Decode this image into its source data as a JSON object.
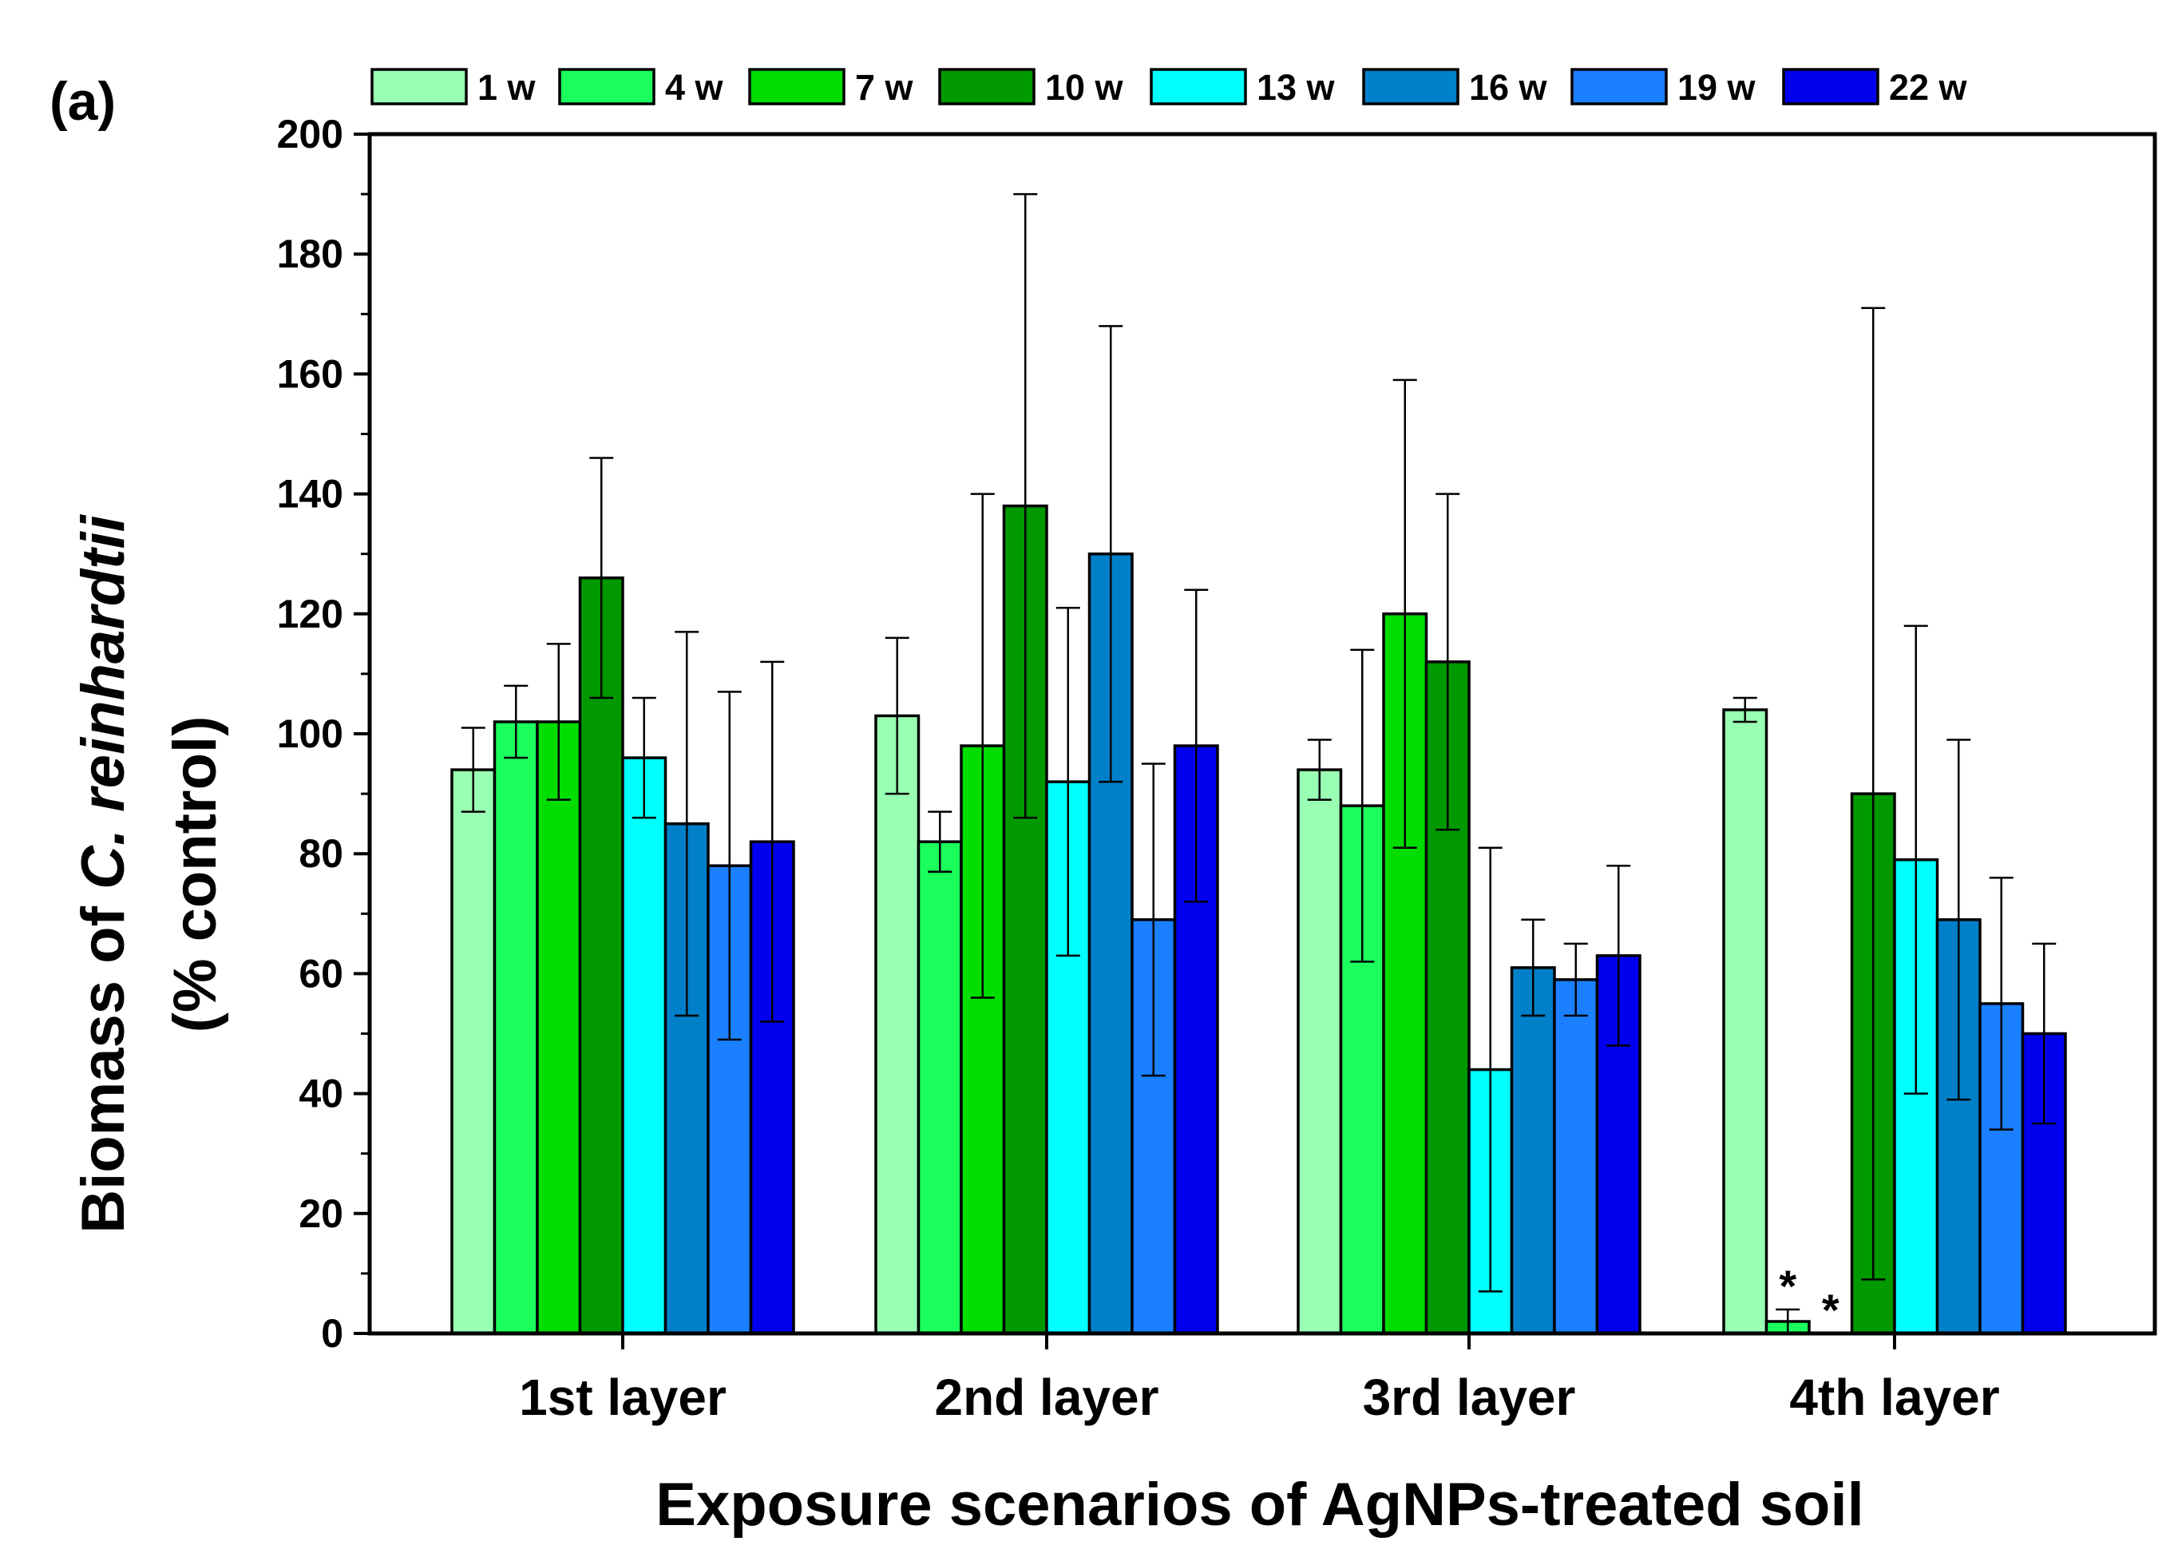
{
  "panel_label": "(a)",
  "chart_data": {
    "type": "bar",
    "title": "",
    "xlabel": "Exposure scenarios of AgNPs-treated soil",
    "ylabel_prefix": "Biomass of ",
    "ylabel_species": "C. reinhardtii",
    "ylabel_line2": "(% control)",
    "ylim": [
      0,
      200
    ],
    "ytick_step": 20,
    "yticks": [
      "0",
      "20",
      "40",
      "60",
      "80",
      "100",
      "120",
      "140",
      "160",
      "180",
      "200"
    ],
    "categories": [
      "1st layer",
      "2nd layer",
      "3rd layer",
      "4th layer"
    ],
    "legend_position": "top",
    "series": [
      {
        "name": "1 w",
        "color": "#99FFB3",
        "values": [
          94,
          103,
          94,
          104
        ],
        "err_low": [
          87,
          90,
          89,
          102
        ],
        "err_high": [
          101,
          116,
          99,
          106
        ]
      },
      {
        "name": "4 w",
        "color": "#1AFF5C",
        "values": [
          102,
          82,
          88,
          2
        ],
        "err_low": [
          96,
          77,
          62,
          0
        ],
        "err_high": [
          108,
          87,
          114,
          4
        ]
      },
      {
        "name": "7 w",
        "color": "#00DD00",
        "values": [
          102,
          98,
          120,
          0
        ],
        "err_low": [
          89,
          56,
          81,
          0
        ],
        "err_high": [
          115,
          140,
          159,
          0
        ]
      },
      {
        "name": "10 w",
        "color": "#009900",
        "values": [
          126,
          138,
          112,
          90
        ],
        "err_low": [
          106,
          86,
          84,
          9
        ],
        "err_high": [
          146,
          190,
          140,
          171
        ]
      },
      {
        "name": "13 w",
        "color": "#00FFFF",
        "values": [
          96,
          92,
          44,
          79
        ],
        "err_low": [
          86,
          63,
          7,
          40
        ],
        "err_high": [
          106,
          121,
          81,
          118
        ]
      },
      {
        "name": "16 w",
        "color": "#0080C8",
        "values": [
          85,
          130,
          61,
          69
        ],
        "err_low": [
          53,
          92,
          53,
          39
        ],
        "err_high": [
          117,
          168,
          69,
          99
        ]
      },
      {
        "name": "19 w",
        "color": "#1A80FF",
        "values": [
          78,
          69,
          59,
          55
        ],
        "err_low": [
          49,
          43,
          53,
          34
        ],
        "err_high": [
          107,
          95,
          65,
          76
        ]
      },
      {
        "name": "22 w",
        "color": "#0000EE",
        "values": [
          82,
          98,
          63,
          50
        ],
        "err_low": [
          52,
          72,
          48,
          35
        ],
        "err_high": [
          112,
          124,
          78,
          65
        ]
      }
    ],
    "annotations": [
      {
        "text": "*",
        "category": "4th layer",
        "series": "4 w"
      },
      {
        "text": "*",
        "category": "4th layer",
        "series": "7 w"
      }
    ]
  }
}
